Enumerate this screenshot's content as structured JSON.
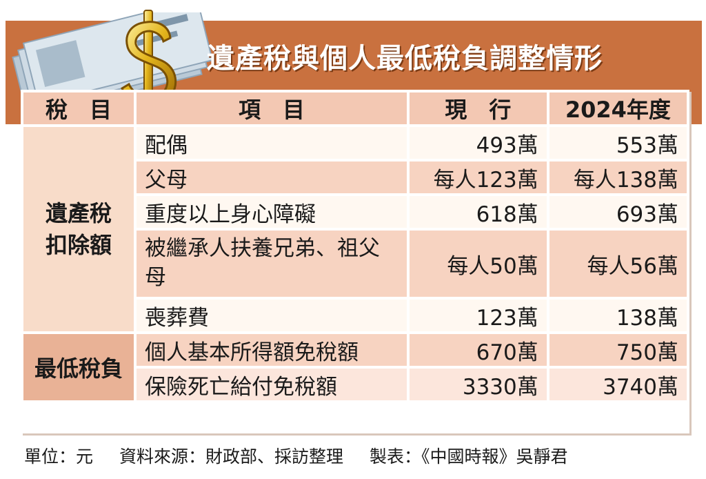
{
  "title": "遺產稅與個人最低稅負調整情形",
  "table": {
    "headers": {
      "category": "稅　目",
      "item": "項　目",
      "current": "現　行",
      "new": "2024年度"
    },
    "groups": [
      {
        "category": "遺產稅\n扣除額",
        "rows": [
          {
            "item": "配偶",
            "current": "493萬",
            "new": "553萬"
          },
          {
            "item": "父母",
            "current": "每人123萬",
            "new": "每人138萬"
          },
          {
            "item": "重度以上身心障礙",
            "current": "618萬",
            "new": "693萬"
          },
          {
            "item": "被繼承人扶養兄弟、祖父母",
            "current": "每人50萬",
            "new": "每人56萬"
          },
          {
            "item": "喪葬費",
            "current": "123萬",
            "new": "138萬"
          }
        ]
      },
      {
        "category": "最低稅負",
        "rows": [
          {
            "item": "個人基本所得額免稅額",
            "current": "670萬",
            "new": "750萬"
          },
          {
            "item": "保險死亡給付免稅額",
            "current": "3330萬",
            "new": "3740萬"
          }
        ]
      }
    ]
  },
  "footer": {
    "unit": "單位：元",
    "source": "資料來源：財政部、採訪整理",
    "credit": "製表：《中國時報》吳靜君"
  },
  "colors": {
    "header_bg": "#c9713f",
    "table_header": "#f3c8b3",
    "row_pink": "#f7d3c1",
    "row_light": "#fff8f1"
  }
}
